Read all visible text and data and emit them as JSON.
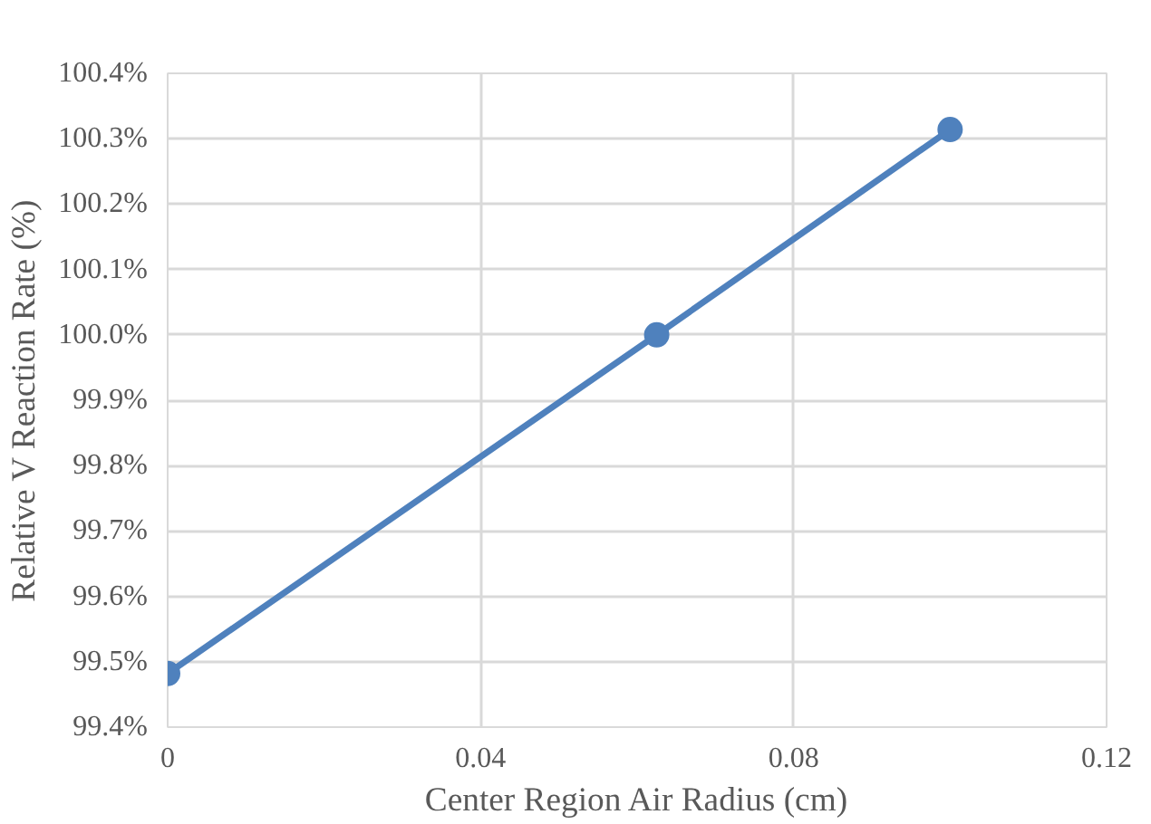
{
  "chart_data": {
    "type": "line",
    "xlabel": "Center Region Air Radius (cm)",
    "ylabel": "Relative V Reaction Rate (%)",
    "x": [
      0,
      0.0625,
      0.1
    ],
    "series": [
      {
        "color": "#4f81bd",
        "values": [
          99.482,
          100.0,
          100.314
        ]
      }
    ],
    "xlim": [
      0,
      0.12
    ],
    "xticks": [
      0,
      0.04,
      0.08,
      0.12
    ],
    "ylim": [
      99.4,
      100.4
    ],
    "yticks": [
      {
        "value": 99.4,
        "label": "99.4%"
      },
      {
        "value": 99.5,
        "label": "99.5%"
      },
      {
        "value": 99.6,
        "label": "99.6%"
      },
      {
        "value": 99.7,
        "label": "99.7%"
      },
      {
        "value": 99.8,
        "label": "99.8%"
      },
      {
        "value": 99.9,
        "label": "99.9%"
      },
      {
        "value": 100.0,
        "label": "100.0%"
      },
      {
        "value": 100.1,
        "label": "100.1%"
      },
      {
        "value": 100.2,
        "label": "100.2%"
      },
      {
        "value": 100.3,
        "label": "100.3%"
      },
      {
        "value": 100.4,
        "label": "100.4%"
      }
    ],
    "grid": true,
    "marker": "circle",
    "line_style": "solid"
  }
}
